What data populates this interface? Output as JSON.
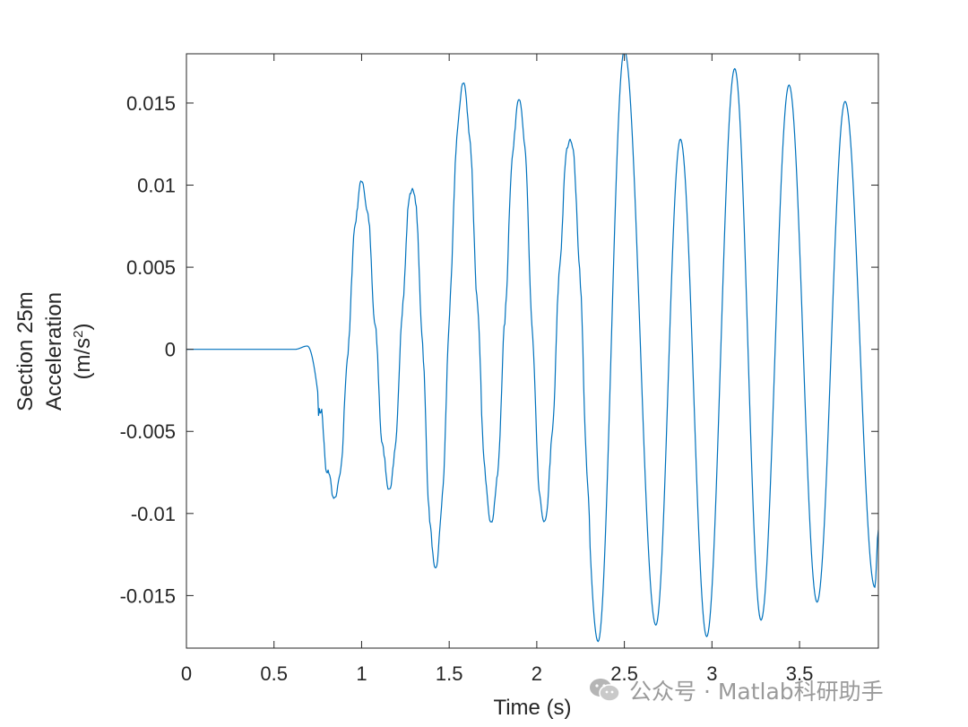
{
  "chart_data": {
    "type": "line",
    "title": "",
    "xlabel": "Time (s)",
    "ylabel_lines": [
      "Section 25m",
      "Acceleration"
    ],
    "ylabel_unit": {
      "prefix": "(m/s",
      "superscript": "2",
      "suffix": ")"
    },
    "xlim": [
      0,
      3.95
    ],
    "ylim": [
      -0.0182,
      0.018
    ],
    "x_ticks": [
      0,
      0.5,
      1,
      1.5,
      2,
      2.5,
      3,
      3.5
    ],
    "x_tick_labels": [
      "0",
      "0.5",
      "1",
      "1.5",
      "2",
      "2.5",
      "3",
      "3.5"
    ],
    "y_ticks": [
      0.015,
      0.01,
      0.005,
      0,
      -0.005,
      -0.01,
      -0.015
    ],
    "y_tick_labels": [
      "0.015",
      "0.01",
      "0.005",
      "0",
      "-0.005",
      "-0.01",
      "-0.015"
    ],
    "grid": false,
    "line_color": "#0072BD",
    "series": [
      {
        "x": [
          0,
          0.62,
          0.69,
          0.85,
          1.0,
          1.16,
          1.29,
          1.42,
          1.58,
          1.74,
          1.9,
          2.04,
          2.19,
          2.35,
          2.5,
          2.68,
          2.82,
          2.97,
          3.13,
          3.28,
          3.44,
          3.6,
          3.76,
          3.93,
          3.95
        ],
        "y": [
          0,
          0,
          0.0002,
          -0.009,
          0.0102,
          -0.0085,
          0.0098,
          -0.0133,
          0.0162,
          -0.0105,
          0.0152,
          -0.0105,
          0.0128,
          -0.0178,
          0.0182,
          -0.0168,
          0.0128,
          -0.0175,
          0.0171,
          -0.0165,
          0.0161,
          -0.0154,
          0.0151,
          -0.0145,
          -0.011
        ]
      }
    ]
  },
  "watermark": {
    "text": "公众号 · Matlab科研助手",
    "icon": "wechat-icon"
  }
}
